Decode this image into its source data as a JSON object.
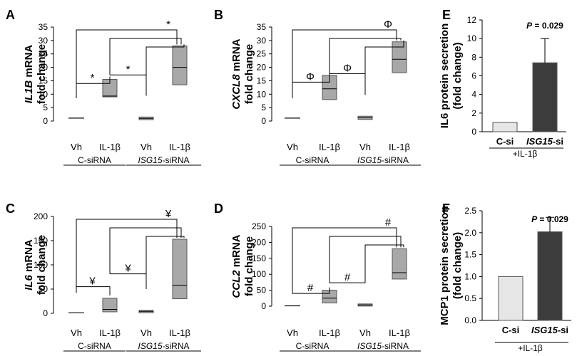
{
  "figure": {
    "panels": [
      "A",
      "B",
      "C",
      "D",
      "E",
      "F"
    ]
  },
  "chart_data": [
    {
      "panel": "A",
      "type": "box",
      "ylabel_gene": "IL1B",
      "ylabel_rest": "mRNA",
      "ylabel_line2": "fold change",
      "ylim": [
        0,
        35
      ],
      "yticks": [
        0,
        5,
        10,
        15,
        20,
        25,
        30,
        35
      ],
      "categories": [
        "Vh",
        "IL-1β",
        "Vh",
        "IL-1β"
      ],
      "group_labels": [
        {
          "gene": "",
          "text": "C-siRNA"
        },
        {
          "gene": "ISG15",
          "text": "-siRNA"
        }
      ],
      "boxes": [
        {
          "q1": 1.1,
          "median": 1.1,
          "q3": 1.1
        },
        {
          "q1": 9.0,
          "median": 9.3,
          "q3": 15.5
        },
        {
          "q1": 0.5,
          "median": 1.0,
          "q3": 1.5
        },
        {
          "q1": 13.5,
          "median": 20.0,
          "q3": 28.0
        }
      ],
      "sig_symbol": "*"
    },
    {
      "panel": "B",
      "type": "box",
      "ylabel_gene": "CXCL8",
      "ylabel_rest": "mRNA",
      "ylabel_line2": "fold change",
      "ylim": [
        0,
        35
      ],
      "yticks": [
        0,
        5,
        10,
        15,
        20,
        25,
        30,
        35
      ],
      "categories": [
        "Vh",
        "IL-1β",
        "Vh",
        "IL-1β"
      ],
      "group_labels": [
        {
          "gene": "",
          "text": "C-siRNA"
        },
        {
          "gene": "ISG15",
          "text": "-siRNA"
        }
      ],
      "boxes": [
        {
          "q1": 1.1,
          "median": 1.1,
          "q3": 1.1
        },
        {
          "q1": 8.0,
          "median": 12.0,
          "q3": 17.0
        },
        {
          "q1": 0.6,
          "median": 1.2,
          "q3": 1.8
        },
        {
          "q1": 18.0,
          "median": 23.0,
          "q3": 29.5
        }
      ],
      "sig_symbol": "Φ"
    },
    {
      "panel": "C",
      "type": "box",
      "ylabel_gene": "IL6",
      "ylabel_rest": "mRNA",
      "ylabel_line2": "fold change",
      "ylim": [
        0,
        200
      ],
      "yticks": [
        0,
        50,
        100,
        150,
        200
      ],
      "categories": [
        "Vh",
        "IL-1β",
        "Vh",
        "IL-1β"
      ],
      "group_labels": [
        {
          "gene": "",
          "text": "C-siRNA"
        },
        {
          "gene": "ISG15",
          "text": "-siRNA"
        }
      ],
      "boxes": [
        {
          "q1": 1.0,
          "median": 1.0,
          "q3": 1.0
        },
        {
          "q1": 3.0,
          "median": 8.0,
          "q3": 31.0
        },
        {
          "q1": 1.0,
          "median": 4.0,
          "q3": 6.0
        },
        {
          "q1": 30.0,
          "median": 58.0,
          "q3": 153.0
        }
      ],
      "sig_symbol": "¥"
    },
    {
      "panel": "D",
      "type": "box",
      "ylabel_gene": "CCL2",
      "ylabel_rest": "mRNA",
      "ylabel_line2": "fold change",
      "ylim": [
        0,
        250
      ],
      "yticks": [
        0,
        50,
        100,
        150,
        200,
        250
      ],
      "categories": [
        "Vh",
        "IL-1β",
        "Vh",
        "IL-1β"
      ],
      "group_labels": [
        {
          "gene": "",
          "text": "C-siRNA"
        },
        {
          "gene": "ISG15",
          "text": "-siRNA"
        }
      ],
      "boxes": [
        {
          "q1": 1.0,
          "median": 1.0,
          "q3": 1.0
        },
        {
          "q1": 10.0,
          "median": 25.0,
          "q3": 50.0
        },
        {
          "q1": 2.0,
          "median": 4.0,
          "q3": 7.0
        },
        {
          "q1": 85.0,
          "median": 105.0,
          "q3": 180.0
        }
      ],
      "sig_symbol": "#"
    },
    {
      "panel": "E",
      "type": "bar",
      "ylabel_line1": "IL6 protein secretion",
      "ylabel_line2": "(fold change)",
      "ylim": [
        0,
        12
      ],
      "yticks": [
        0,
        2,
        4,
        6,
        8,
        10,
        12
      ],
      "categories": [
        {
          "gene": "",
          "text": "C-si"
        },
        {
          "gene": "ISG15",
          "text": "-si"
        }
      ],
      "values": [
        1.0,
        7.4
      ],
      "errors": [
        0,
        2.6
      ],
      "bar_colors": [
        "#e6e6e6",
        "#3c3c3c"
      ],
      "group_label": "+IL-1β",
      "pvalue_italic": "P",
      "pvalue_text": " = 0.029",
      "decimals": 0
    },
    {
      "panel": "F",
      "type": "bar",
      "ylabel_line1": "MCP1 protein secretion",
      "ylabel_line2": "(fold change)",
      "ylim": [
        0,
        2.5
      ],
      "yticks": [
        0.0,
        0.5,
        1.0,
        1.5,
        2.0,
        2.5
      ],
      "categories": [
        {
          "gene": "",
          "text": "C-si"
        },
        {
          "gene": "ISG15",
          "text": "-si"
        }
      ],
      "values": [
        1.0,
        2.02
      ],
      "errors": [
        0,
        0.33
      ],
      "bar_colors": [
        "#e6e6e6",
        "#3c3c3c"
      ],
      "group_label": "+IL-1β",
      "pvalue_italic": "P",
      "pvalue_text": " = 0.029",
      "decimals": 1
    }
  ]
}
